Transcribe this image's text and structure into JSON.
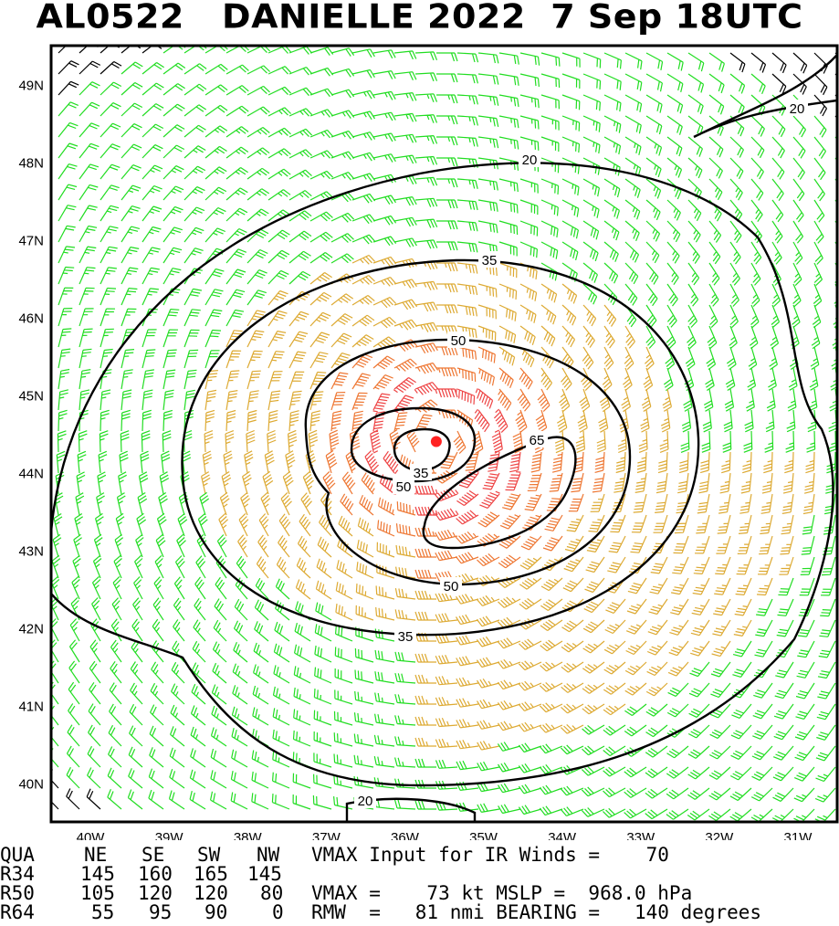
{
  "title": "AL0522   DANIELLE 2022  7 Sep 18UTC",
  "map": {
    "lat_labels": [
      "49N",
      "48N",
      "47N",
      "46N",
      "45N",
      "44N",
      "43N",
      "42N",
      "41N",
      "40N"
    ],
    "lon_labels": [
      "40W",
      "39W",
      "38W",
      "37W",
      "36W",
      "35W",
      "34W",
      "33W",
      "32W",
      "31W"
    ],
    "lon_range": [
      -40.5,
      -30.5
    ],
    "lat_range": [
      39.5,
      49.5
    ],
    "contour_labels": [
      "20",
      "20",
      "20",
      "35",
      "35",
      "35",
      "50",
      "50",
      "50",
      "65"
    ],
    "storm_center": {
      "lat": 44.4,
      "lon": -35.6
    },
    "colors": {
      "calm": "#000000",
      "ts34": "#22dd22",
      "ts50": "#ddaa33",
      "ts64": "#ee7733",
      "hurricane": "#ee4444",
      "center": "#ff2222",
      "contour": "#000000"
    }
  },
  "info": {
    "quad_header": [
      "QUA",
      "NE",
      "SE",
      "SW",
      "NW"
    ],
    "r34": [
      "R34",
      "145",
      "160",
      "165",
      "145"
    ],
    "r50": [
      "R50",
      "105",
      "120",
      "120",
      "80"
    ],
    "r64": [
      "R64",
      "55",
      "95",
      "90",
      "0"
    ],
    "vmax_input": "VMAX Input for IR Winds =    70",
    "vmax_line": "VMAX =    73 kt MSLP =  968.0 hPa",
    "rmw_line": "RMW  =   81 nmi BEARING =   140 degrees"
  }
}
